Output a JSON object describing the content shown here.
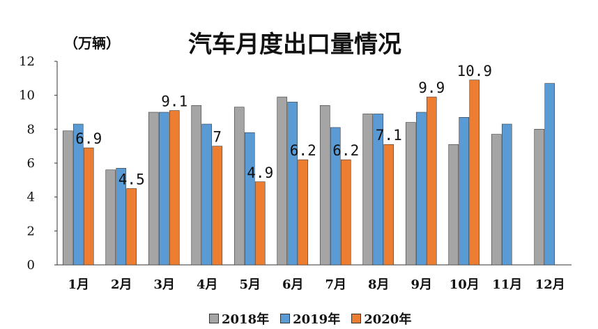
{
  "chart_data": {
    "type": "bar",
    "title": "汽车月度出口量情况",
    "unit_label": "（万辆）",
    "categories": [
      "1月",
      "2月",
      "3月",
      "4月",
      "5月",
      "6月",
      "7月",
      "8月",
      "9月",
      "10月",
      "11月",
      "12月"
    ],
    "series": [
      {
        "name": "2018年",
        "color": "#a5a5a5",
        "values": [
          7.9,
          5.6,
          9.0,
          9.4,
          9.3,
          9.9,
          9.4,
          8.9,
          8.4,
          7.1,
          7.7,
          8.0
        ]
      },
      {
        "name": "2019年",
        "color": "#5b9bd5",
        "values": [
          8.3,
          5.7,
          9.0,
          8.3,
          7.8,
          9.6,
          8.1,
          8.9,
          9.0,
          8.7,
          8.3,
          10.7
        ]
      },
      {
        "name": "2020年",
        "color": "#ed7d31",
        "values": [
          6.9,
          4.5,
          9.1,
          7.0,
          4.9,
          6.2,
          6.2,
          7.1,
          9.9,
          10.9,
          null,
          null
        ]
      }
    ],
    "data_labels": [
      "6.9",
      "4.5",
      "9.1",
      "7",
      "4.9",
      "6.2",
      "6.2",
      "7.1",
      "9.9",
      "10.9"
    ],
    "ylim": [
      0,
      12
    ],
    "yticks": [
      0,
      2,
      4,
      6,
      8,
      10,
      12
    ],
    "grid": false,
    "legend_position": "bottom"
  }
}
